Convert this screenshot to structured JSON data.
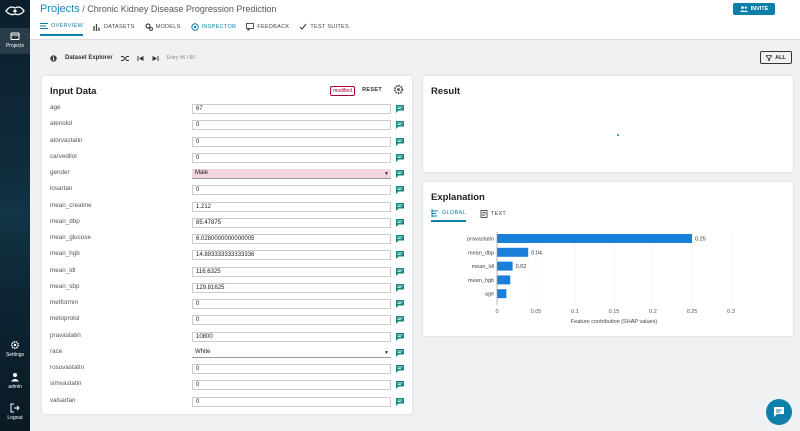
{
  "sidebar": {
    "projects_label": "Projects",
    "settings_label": "Settings",
    "admin_label": "admin",
    "logout_label": "Logout"
  },
  "header": {
    "projects_link": "Projects",
    "separator": "/",
    "project_name": "Chronic Kidney Disease Progression Prediction",
    "invite_label": "INVITE",
    "tabs": [
      {
        "label": "OVERVIEW",
        "icon": "list-icon"
      },
      {
        "label": "DATASETS",
        "icon": "bar-chart-icon"
      },
      {
        "label": "MODELS",
        "icon": "gears-icon"
      },
      {
        "label": "INSPECTOR",
        "icon": "inspector-icon"
      },
      {
        "label": "FEEDBACK",
        "icon": "feedback-icon"
      },
      {
        "label": "TEST SUITES",
        "icon": "test-suites-icon"
      }
    ],
    "active_tab": "INSPECTOR"
  },
  "toolbar": {
    "explorer_label": "Dataset Explorer",
    "entry_text": "Entry #6 / 60",
    "all_label": "ALL"
  },
  "input_panel": {
    "title": "Input Data",
    "modified_badge": "modified",
    "reset_label": "RESET",
    "fields": [
      {
        "name": "age",
        "value": "67"
      },
      {
        "name": "atenolol",
        "value": "0"
      },
      {
        "name": "atorvastatin",
        "value": "0"
      },
      {
        "name": "carvedilol",
        "value": "0"
      },
      {
        "name": "gender",
        "value": "Male",
        "type": "select",
        "modified": true
      },
      {
        "name": "losartan",
        "value": "0"
      },
      {
        "name": "mean_creatine",
        "value": "1.212"
      },
      {
        "name": "mean_dbp",
        "value": "85.47875"
      },
      {
        "name": "mean_glucose",
        "value": "6.0280000000000005"
      },
      {
        "name": "mean_hgb",
        "value": "14.893333333333336"
      },
      {
        "name": "mean_ldl",
        "value": "116.6325"
      },
      {
        "name": "mean_sbp",
        "value": "129.81625"
      },
      {
        "name": "metformin",
        "value": "0"
      },
      {
        "name": "metoprolol",
        "value": "0"
      },
      {
        "name": "pravastatin",
        "value": "10800"
      },
      {
        "name": "race",
        "value": "White",
        "type": "select"
      },
      {
        "name": "rosuvastatin",
        "value": "0"
      },
      {
        "name": "simvastatin",
        "value": "0"
      },
      {
        "name": "valsartan",
        "value": "0"
      }
    ]
  },
  "result_panel": {
    "title": "Result"
  },
  "explanation_panel": {
    "title": "Explanation",
    "tabs": [
      {
        "label": "GLOBAL",
        "icon": "global-bars-icon"
      },
      {
        "label": "TEXT",
        "icon": "text-doc-icon"
      }
    ],
    "active_tab": "GLOBAL"
  },
  "chart_data": {
    "type": "bar",
    "orientation": "horizontal",
    "categories": [
      "pravastatin",
      "mean_dbp",
      "mean_ldl",
      "mean_hgb",
      "age"
    ],
    "values": [
      0.25,
      0.04,
      0.02,
      0.017,
      0.012
    ],
    "data_labels": [
      "0.25",
      "0.04",
      "0.02",
      "",
      ""
    ],
    "xlabel": "Feature contribution (SHAP values)",
    "xlim": [
      0,
      0.3
    ],
    "xticks": [
      "0",
      "0.05",
      "0.1",
      "0.15",
      "0.2",
      "0.25",
      "0.3"
    ],
    "bar_color": "#1a7fd9"
  },
  "colors": {
    "accent": "#0e7fa8",
    "modified": "#b0003a"
  }
}
